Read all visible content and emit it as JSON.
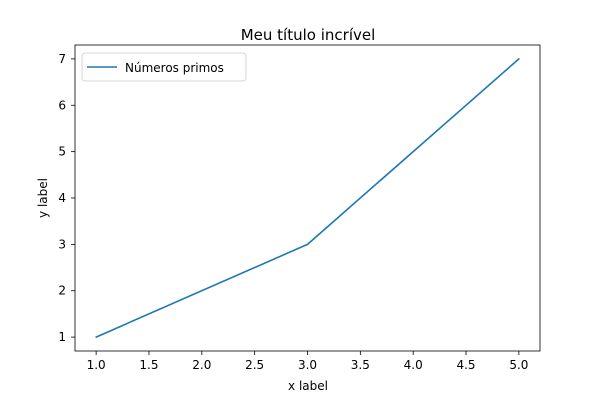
{
  "chart_data": {
    "type": "line",
    "title": "Meu título incrível",
    "xlabel": "x label",
    "ylabel": "y label",
    "xlim": [
      0.8,
      5.2
    ],
    "ylim": [
      0.7,
      7.3
    ],
    "xticks": [
      1.0,
      1.5,
      2.0,
      2.5,
      3.0,
      3.5,
      4.0,
      4.5,
      5.0
    ],
    "xtick_labels": [
      "1.0",
      "1.5",
      "2.0",
      "2.5",
      "3.0",
      "3.5",
      "4.0",
      "4.5",
      "5.0"
    ],
    "yticks": [
      1,
      2,
      3,
      4,
      5,
      6,
      7
    ],
    "ytick_labels": [
      "1",
      "2",
      "3",
      "4",
      "5",
      "6",
      "7"
    ],
    "grid": false,
    "legend_position": "top-left",
    "series": [
      {
        "name": "Números primos",
        "color": "#1f77b4",
        "x": [
          1,
          3,
          5
        ],
        "y": [
          1,
          3,
          7
        ]
      }
    ]
  }
}
